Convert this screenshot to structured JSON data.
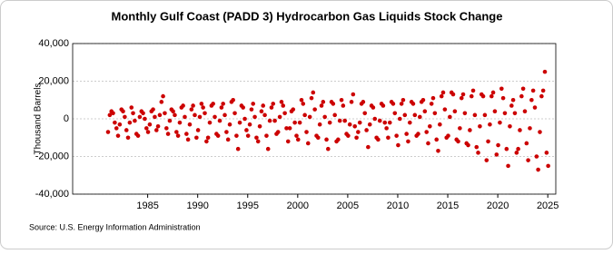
{
  "chart_data": {
    "type": "scatter",
    "title": "Monthly Gulf Coast (PADD 3) Hydrocarbon Gas Liquids Stock Change",
    "y_label": "Thousand Barrels",
    "source": "Source: U.S. Energy Information Administration",
    "color": "#cc0000",
    "grid": true,
    "xlim": [
      1977.5,
      2025.8
    ],
    "xticks": [
      1985,
      1990,
      1995,
      2000,
      2005,
      2010,
      2015,
      2020,
      2025
    ],
    "ylim": [
      -40000,
      40000
    ],
    "yticks": [
      {
        "value": -40000,
        "label": "-40,000"
      },
      {
        "value": -20000,
        "label": "-20,000"
      },
      0,
      {
        "value": 20000,
        "label": "20,000"
      },
      {
        "value": 40000,
        "label": "40,000"
      }
    ],
    "x": [
      1981.04,
      1981.21,
      1981.38,
      1981.54,
      1981.71,
      1981.88,
      1982.04,
      1982.21,
      1982.38,
      1982.54,
      1982.71,
      1982.88,
      1983.04,
      1983.21,
      1983.38,
      1983.54,
      1983.71,
      1983.88,
      1984.04,
      1984.21,
      1984.38,
      1984.54,
      1984.71,
      1984.88,
      1985.04,
      1985.21,
      1985.38,
      1985.54,
      1985.71,
      1985.88,
      1986.04,
      1986.21,
      1986.38,
      1986.54,
      1986.71,
      1986.88,
      1987.04,
      1987.21,
      1987.38,
      1987.54,
      1987.71,
      1987.88,
      1988.04,
      1988.21,
      1988.38,
      1988.54,
      1988.71,
      1988.88,
      1989.04,
      1989.21,
      1989.38,
      1989.54,
      1989.71,
      1989.88,
      1990.04,
      1990.21,
      1990.38,
      1990.54,
      1990.71,
      1990.88,
      1991.04,
      1991.21,
      1991.38,
      1991.54,
      1991.71,
      1991.88,
      1992.04,
      1992.21,
      1992.38,
      1992.54,
      1992.71,
      1992.88,
      1993.04,
      1993.21,
      1993.38,
      1993.54,
      1993.71,
      1993.88,
      1994.04,
      1994.21,
      1994.38,
      1994.54,
      1994.71,
      1994.88,
      1995.04,
      1995.21,
      1995.38,
      1995.54,
      1995.71,
      1995.88,
      1996.04,
      1996.21,
      1996.38,
      1996.54,
      1996.71,
      1996.88,
      1997.04,
      1997.21,
      1997.38,
      1997.54,
      1997.71,
      1997.88,
      1998.04,
      1998.21,
      1998.38,
      1998.54,
      1998.71,
      1998.88,
      1999.04,
      1999.21,
      1999.38,
      1999.54,
      1999.71,
      1999.88,
      2000.04,
      2000.21,
      2000.38,
      2000.54,
      2000.71,
      2000.88,
      2001.04,
      2001.21,
      2001.38,
      2001.54,
      2001.71,
      2001.88,
      2002.04,
      2002.21,
      2002.38,
      2002.54,
      2002.71,
      2002.88,
      2003.04,
      2003.21,
      2003.38,
      2003.54,
      2003.71,
      2003.88,
      2004.04,
      2004.21,
      2004.38,
      2004.54,
      2004.71,
      2004.88,
      2005.04,
      2005.21,
      2005.38,
      2005.54,
      2005.71,
      2005.88,
      2006.04,
      2006.21,
      2006.38,
      2006.54,
      2006.71,
      2006.88,
      2007.04,
      2007.21,
      2007.38,
      2007.54,
      2007.71,
      2007.88,
      2008.04,
      2008.21,
      2008.38,
      2008.54,
      2008.71,
      2008.88,
      2009.04,
      2009.21,
      2009.38,
      2009.54,
      2009.71,
      2009.88,
      2010.04,
      2010.21,
      2010.38,
      2010.54,
      2010.71,
      2010.88,
      2011.04,
      2011.21,
      2011.38,
      2011.54,
      2011.71,
      2011.88,
      2012.04,
      2012.21,
      2012.38,
      2012.54,
      2012.71,
      2012.88,
      2013.04,
      2013.21,
      2013.38,
      2013.54,
      2013.71,
      2013.88,
      2014.04,
      2014.21,
      2014.38,
      2014.54,
      2014.71,
      2014.88,
      2015.04,
      2015.21,
      2015.38,
      2015.54,
      2015.71,
      2015.88,
      2016.04,
      2016.21,
      2016.38,
      2016.54,
      2016.71,
      2016.88,
      2017.04,
      2017.21,
      2017.38,
      2017.54,
      2017.71,
      2017.88,
      2018.04,
      2018.21,
      2018.38,
      2018.54,
      2018.71,
      2018.88,
      2019.04,
      2019.21,
      2019.38,
      2019.54,
      2019.71,
      2019.88,
      2020.04,
      2020.21,
      2020.38,
      2020.54,
      2020.71,
      2020.88,
      2021.04,
      2021.21,
      2021.38,
      2021.54,
      2021.71,
      2021.88,
      2022.04,
      2022.21,
      2022.38,
      2022.54,
      2022.71,
      2022.88,
      2023.04,
      2023.21,
      2023.38,
      2023.54,
      2023.71,
      2023.88,
      2024.04,
      2024.21,
      2024.38,
      2024.54,
      2024.71,
      2024.88,
      2025.04
    ],
    "values": [
      -7000,
      2000,
      4000,
      3000,
      -2000,
      -5000,
      -9000,
      -3000,
      5000,
      4000,
      1000,
      -6000,
      -10000,
      -2000,
      6000,
      3000,
      -1000,
      -8000,
      -9000,
      1000,
      4000,
      3000,
      0,
      -5000,
      -7000,
      -3000,
      4000,
      5000,
      1000,
      -6000,
      -4000,
      2000,
      9000,
      12000,
      3000,
      -5000,
      -8000,
      -1000,
      5000,
      4000,
      2000,
      -7000,
      -9000,
      -2000,
      6000,
      7000,
      1000,
      -8000,
      -11000,
      -3000,
      5000,
      7000,
      2000,
      -10000,
      -6000,
      1000,
      8000,
      6000,
      3000,
      -12000,
      -10000,
      -2000,
      7000,
      8000,
      1000,
      -8000,
      -9000,
      -1000,
      6000,
      8000,
      2000,
      -7000,
      -11000,
      -3000,
      9000,
      10000,
      3000,
      -9000,
      -16000,
      -2000,
      7000,
      6000,
      0,
      -6000,
      -9000,
      -3000,
      5000,
      8000,
      1000,
      -10000,
      -12000,
      -4000,
      4000,
      7000,
      2000,
      -9000,
      -16000,
      -1000,
      6000,
      8000,
      -1000,
      -8000,
      -7000,
      1000,
      9000,
      7000,
      3000,
      -5000,
      -12000,
      -5000,
      4000,
      5000,
      -2000,
      -9000,
      -11000,
      -2000,
      10000,
      8000,
      2000,
      -7000,
      -13000,
      1000,
      11000,
      14000,
      5000,
      -9000,
      -10000,
      -3000,
      7000,
      9000,
      1000,
      -11000,
      -16000,
      -2000,
      9000,
      8000,
      2000,
      -12000,
      -11000,
      -1000,
      10000,
      7000,
      -1000,
      -8000,
      -9000,
      -3000,
      9000,
      13000,
      -4000,
      -10000,
      -7000,
      -2000,
      8000,
      9000,
      3000,
      -6000,
      -15000,
      -3000,
      7000,
      6000,
      0,
      -10000,
      -11000,
      -1000,
      8000,
      7000,
      -2000,
      -5000,
      -10000,
      -2000,
      9000,
      8000,
      3000,
      -9000,
      -14000,
      0,
      8000,
      10000,
      2000,
      -8000,
      -12000,
      -2000,
      9000,
      8000,
      2000,
      -9000,
      -8000,
      1000,
      9000,
      10000,
      4000,
      -7000,
      -13000,
      -4000,
      8000,
      11000,
      3000,
      -11000,
      -17000,
      -3000,
      12000,
      14000,
      5000,
      -10000,
      -9000,
      1000,
      14000,
      13000,
      4000,
      -11000,
      -12000,
      -5000,
      11000,
      13000,
      3000,
      -13000,
      -14000,
      -6000,
      12000,
      15000,
      2000,
      -15000,
      -18000,
      -4000,
      13000,
      12000,
      2000,
      -22000,
      -12000,
      -3000,
      12000,
      14000,
      4000,
      -19000,
      -14000,
      -2000,
      16000,
      11000,
      3000,
      -16000,
      -25000,
      -4000,
      7000,
      10000,
      3000,
      -18000,
      -16000,
      -6000,
      12000,
      16000,
      4000,
      -13000,
      -22000,
      -5000,
      10000,
      15000,
      6000,
      -20000,
      -27000,
      -7000,
      12000,
      15000,
      25000,
      -18000,
      -25000
    ]
  }
}
